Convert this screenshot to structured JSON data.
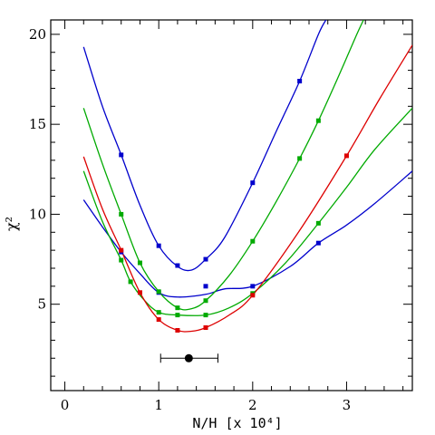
{
  "chart_data": {
    "type": "line",
    "xlabel": "N/H [x 10⁴]",
    "ylabel": "χ²",
    "xlim": [
      -0.15,
      3.7
    ],
    "ylim": [
      0.2,
      20.8
    ],
    "x_ticks": [
      0,
      1,
      2,
      3
    ],
    "y_ticks": [
      5,
      10,
      15,
      20
    ],
    "grid": false,
    "series": [
      {
        "color": "#0000cc",
        "points": [
          [
            0.6,
            13.3
          ],
          [
            1.0,
            8.25
          ],
          [
            1.2,
            7.15
          ],
          [
            1.5,
            7.5
          ],
          [
            2.0,
            11.75
          ],
          [
            2.5,
            17.4
          ]
        ],
        "curve": [
          [
            0.2,
            19.3
          ],
          [
            0.4,
            16.0
          ],
          [
            0.6,
            13.3
          ],
          [
            0.8,
            10.5
          ],
          [
            1.0,
            8.25
          ],
          [
            1.2,
            7.1
          ],
          [
            1.35,
            6.9
          ],
          [
            1.5,
            7.5
          ],
          [
            1.7,
            8.7
          ],
          [
            2.0,
            11.75
          ],
          [
            2.25,
            14.6
          ],
          [
            2.5,
            17.4
          ],
          [
            2.7,
            20.0
          ],
          [
            2.78,
            20.8
          ]
        ]
      },
      {
        "color": "#0000cc",
        "points": [
          [
            0.6,
            7.9
          ],
          [
            1.0,
            5.65
          ],
          [
            1.5,
            6.0
          ],
          [
            2.0,
            6.0
          ],
          [
            2.7,
            8.4
          ]
        ],
        "curve": [
          [
            0.2,
            10.8
          ],
          [
            0.4,
            9.3
          ],
          [
            0.6,
            7.9
          ],
          [
            0.8,
            6.7
          ],
          [
            1.0,
            5.65
          ],
          [
            1.2,
            5.4
          ],
          [
            1.5,
            5.55
          ],
          [
            1.7,
            5.85
          ],
          [
            2.0,
            6.0
          ],
          [
            2.4,
            7.1
          ],
          [
            2.7,
            8.4
          ],
          [
            3.0,
            9.4
          ],
          [
            3.3,
            10.6
          ],
          [
            3.7,
            12.4
          ]
        ]
      },
      {
        "color": "#00aa00",
        "points": [
          [
            0.6,
            10.0
          ],
          [
            0.8,
            7.3
          ],
          [
            1.0,
            5.7
          ],
          [
            1.2,
            4.8
          ],
          [
            1.5,
            5.2
          ],
          [
            2.0,
            8.5
          ],
          [
            2.5,
            13.1
          ],
          [
            2.7,
            15.2
          ]
        ],
        "curve": [
          [
            0.2,
            15.9
          ],
          [
            0.4,
            12.8
          ],
          [
            0.6,
            10.0
          ],
          [
            0.8,
            7.3
          ],
          [
            1.0,
            5.7
          ],
          [
            1.2,
            4.8
          ],
          [
            1.35,
            4.75
          ],
          [
            1.5,
            5.2
          ],
          [
            1.75,
            6.6
          ],
          [
            2.0,
            8.5
          ],
          [
            2.25,
            10.7
          ],
          [
            2.5,
            13.1
          ],
          [
            2.7,
            15.2
          ],
          [
            2.9,
            17.5
          ],
          [
            3.1,
            19.9
          ],
          [
            3.18,
            20.8
          ]
        ]
      },
      {
        "color": "#00aa00",
        "points": [
          [
            0.6,
            7.45
          ],
          [
            0.7,
            6.25
          ],
          [
            1.0,
            4.55
          ],
          [
            1.2,
            4.4
          ],
          [
            1.5,
            4.4
          ],
          [
            2.0,
            5.6
          ],
          [
            2.7,
            9.5
          ]
        ],
        "curve": [
          [
            0.2,
            12.4
          ],
          [
            0.4,
            9.6
          ],
          [
            0.6,
            7.45
          ],
          [
            0.7,
            6.25
          ],
          [
            0.85,
            5.2
          ],
          [
            1.0,
            4.55
          ],
          [
            1.2,
            4.4
          ],
          [
            1.5,
            4.4
          ],
          [
            1.75,
            4.8
          ],
          [
            2.0,
            5.6
          ],
          [
            2.35,
            7.3
          ],
          [
            2.7,
            9.5
          ],
          [
            3.0,
            11.5
          ],
          [
            3.3,
            13.6
          ],
          [
            3.7,
            15.9
          ]
        ]
      },
      {
        "color": "#dd0000",
        "points": [
          [
            0.6,
            8.0
          ],
          [
            0.8,
            5.65
          ],
          [
            1.0,
            4.15
          ],
          [
            1.2,
            3.55
          ],
          [
            1.5,
            3.7
          ],
          [
            2.0,
            5.5
          ],
          [
            3.0,
            13.25
          ]
        ],
        "curve": [
          [
            0.2,
            13.2
          ],
          [
            0.4,
            10.3
          ],
          [
            0.6,
            8.0
          ],
          [
            0.8,
            5.65
          ],
          [
            1.0,
            4.15
          ],
          [
            1.2,
            3.55
          ],
          [
            1.35,
            3.5
          ],
          [
            1.5,
            3.7
          ],
          [
            1.75,
            4.4
          ],
          [
            2.0,
            5.5
          ],
          [
            2.5,
            9.1
          ],
          [
            3.0,
            13.25
          ],
          [
            3.35,
            16.4
          ],
          [
            3.7,
            19.4
          ]
        ]
      }
    ],
    "measurement": {
      "x": 1.32,
      "y": 2.0,
      "xerr_low": 1.02,
      "xerr_high": 1.63,
      "color": "#000000"
    }
  }
}
